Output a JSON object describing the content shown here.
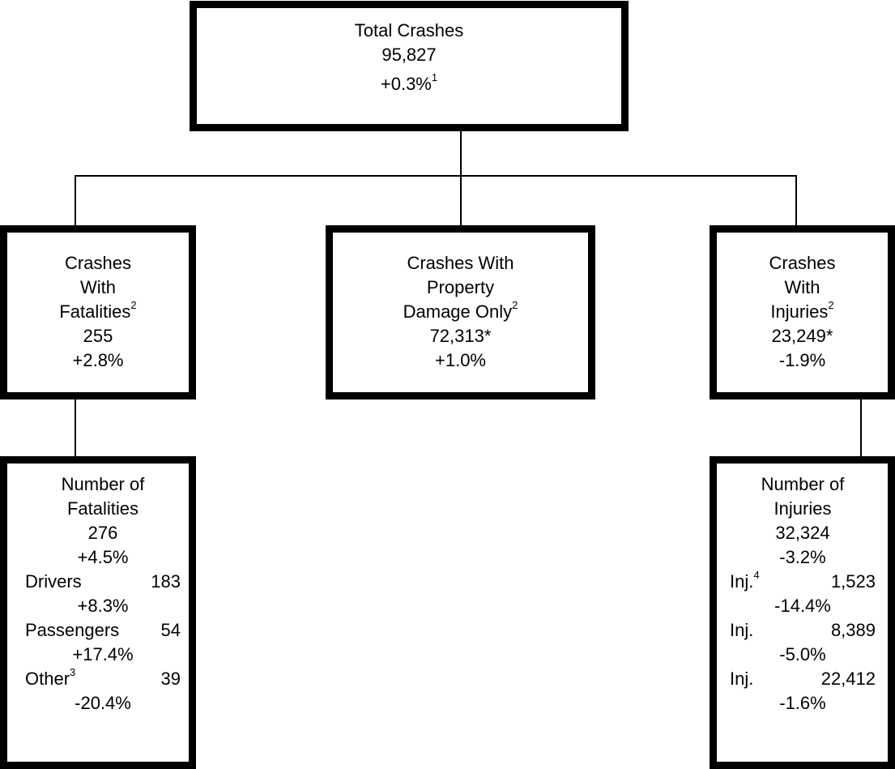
{
  "total": {
    "title": "Total Crashes",
    "count": "95,827",
    "change": "+0.3%",
    "note": "1"
  },
  "fatal_crashes": {
    "line1": "Crashes",
    "line2": "With",
    "line3": "Fatalities",
    "note": "2",
    "count": "255",
    "change": "+2.8%"
  },
  "property_crashes": {
    "line1": "Crashes With",
    "line2": "Property",
    "line3": "Damage Only",
    "note": "2",
    "count": "72,313*",
    "change": "+1.0%"
  },
  "injury_crashes": {
    "line1": "Crashes",
    "line2": "With",
    "line3": "Injuries",
    "note": "2",
    "count": "23,249*",
    "change": "-1.9%"
  },
  "fatalities": {
    "line1": "Number of",
    "line2": "Fatalities",
    "count": "276",
    "change": "+4.5%",
    "rows": [
      {
        "label": "Drivers",
        "note": "",
        "value": "183",
        "change": "+8.3%"
      },
      {
        "label": "Passengers",
        "note": "",
        "value": "54",
        "change": "+17.4%"
      },
      {
        "label": "Other",
        "note": "3",
        "value": "39",
        "change": "-20.4%"
      }
    ]
  },
  "injuries": {
    "line1": "Number of",
    "line2": "Injuries",
    "count": "32,324",
    "change": "-3.2%",
    "rows": [
      {
        "label": "Inj.",
        "note": "4",
        "value": "1,523",
        "change": "-14.4%"
      },
      {
        "label": "Inj.",
        "note": "",
        "value": "8,389",
        "change": "-5.0%"
      },
      {
        "label": "Inj.",
        "note": "",
        "value": "22,412",
        "change": "-1.6%"
      }
    ]
  },
  "colors": {
    "border": "#000000",
    "background": "#ffffff",
    "text": "#000000"
  }
}
